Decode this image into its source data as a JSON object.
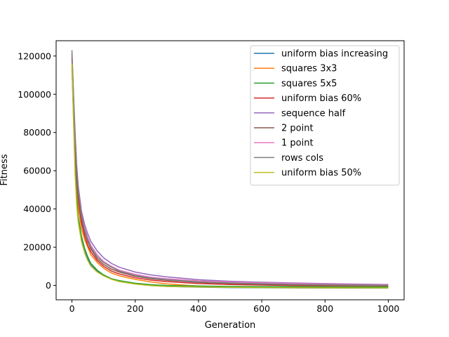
{
  "chart_data": {
    "type": "line",
    "title": "",
    "xlabel": "Generation",
    "ylabel": "Fitness",
    "xlim": [
      -50,
      1050
    ],
    "ylim": [
      -7500,
      128000
    ],
    "xticks": [
      0,
      200,
      400,
      600,
      800,
      1000
    ],
    "yticks": [
      0,
      20000,
      40000,
      60000,
      80000,
      100000,
      120000
    ],
    "grid": false,
    "legend_position": "top-right",
    "x": [
      0,
      5,
      10,
      15,
      20,
      30,
      40,
      50,
      60,
      80,
      100,
      125,
      150,
      200,
      250,
      300,
      400,
      500,
      600,
      700,
      800,
      900,
      1000
    ],
    "series": [
      {
        "name": "uniform bias increasing",
        "color": "#1f77b4",
        "values": [
          115000,
          88000,
          62000,
          45000,
          35000,
          25000,
          19000,
          14000,
          11000,
          7500,
          5500,
          3500,
          2200,
          800,
          0,
          -500,
          -900,
          -1100,
          -1200,
          -1300,
          -1350,
          -1400,
          -1400
        ]
      },
      {
        "name": "squares 3x3",
        "color": "#ff7f0e",
        "values": [
          113000,
          90000,
          68000,
          52000,
          41000,
          30000,
          24000,
          20000,
          16000,
          12000,
          9000,
          6500,
          5000,
          3200,
          1800,
          800,
          -300,
          -700,
          -900,
          -1000,
          -1100,
          -1150,
          -1200
        ]
      },
      {
        "name": "squares 5x5",
        "color": "#2ca02c",
        "values": [
          118000,
          90000,
          64000,
          46000,
          36000,
          26000,
          19500,
          15000,
          11500,
          8000,
          5500,
          3500,
          2500,
          1200,
          400,
          0,
          -300,
          -500,
          -600,
          -650,
          -700,
          -750,
          -800
        ]
      },
      {
        "name": "uniform bias 60%",
        "color": "#d62728",
        "values": [
          119000,
          95000,
          72000,
          56000,
          45000,
          33000,
          26000,
          21000,
          17500,
          13000,
          10000,
          7500,
          6000,
          4000,
          2800,
          2000,
          1000,
          500,
          200,
          0,
          -100,
          -150,
          -200
        ]
      },
      {
        "name": "sequence half",
        "color": "#9467bd",
        "values": [
          121000,
          100000,
          80000,
          63000,
          52000,
          39000,
          32000,
          27000,
          23000,
          18000,
          14500,
          11500,
          9500,
          7000,
          5500,
          4500,
          3000,
          2200,
          1700,
          1300,
          1000,
          700,
          500
        ]
      },
      {
        "name": "2 point",
        "color": "#8c564b",
        "values": [
          120000,
          96000,
          74000,
          58000,
          47000,
          35000,
          28000,
          23000,
          19000,
          14000,
          11000,
          8500,
          7000,
          4800,
          3500,
          2700,
          1600,
          1000,
          600,
          300,
          100,
          0,
          -100
        ]
      },
      {
        "name": "1 point",
        "color": "#e377c2",
        "values": [
          121000,
          98000,
          77000,
          61000,
          50000,
          37000,
          30000,
          25000,
          21000,
          16000,
          12500,
          10000,
          8000,
          5800,
          4300,
          3500,
          2400,
          1800,
          1400,
          1100,
          800,
          500,
          300
        ]
      },
      {
        "name": "rows cols",
        "color": "#7f7f7f",
        "values": [
          123000,
          99000,
          78000,
          62000,
          50000,
          37000,
          29000,
          24000,
          20000,
          15000,
          12000,
          9500,
          7500,
          5200,
          3900,
          3000,
          1900,
          1300,
          900,
          600,
          400,
          200,
          100
        ]
      },
      {
        "name": "uniform bias 50%",
        "color": "#bcbd22",
        "values": [
          116000,
          85000,
          58000,
          42000,
          33000,
          23000,
          17000,
          13000,
          10000,
          7000,
          5000,
          3200,
          2000,
          700,
          -100,
          -500,
          -800,
          -1000,
          -1100,
          -1200,
          -1250,
          -1300,
          -1300
        ]
      }
    ]
  }
}
